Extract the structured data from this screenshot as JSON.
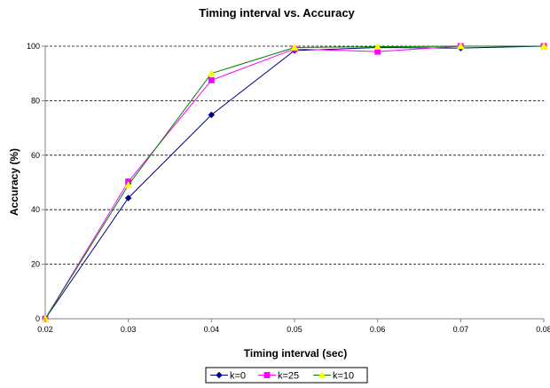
{
  "chart_data": {
    "type": "line",
    "title": "Timing interval vs. Accuracy",
    "xlabel": "Timing interval (sec)",
    "ylabel": "Accuracy (%)",
    "x": [
      0.02,
      0.03,
      0.04,
      0.05,
      0.06,
      0.07,
      0.08
    ],
    "x_tick_labels": [
      "0.02",
      "0.03",
      "0.04",
      "0.05",
      "0.06",
      "0.07",
      "0.08"
    ],
    "y_ticks": [
      0,
      20,
      40,
      60,
      80,
      100
    ],
    "y_tick_labels": [
      "0",
      "20",
      "40",
      "60",
      "80",
      "100"
    ],
    "xlim": [
      0.02,
      0.08
    ],
    "ylim": [
      0,
      100
    ],
    "grid": "horizontal dashed",
    "legend_position": "bottom",
    "series": [
      {
        "name": "k=0",
        "color": "#000080",
        "marker": "diamond",
        "values": [
          0,
          44.3,
          74.8,
          98.4,
          99.5,
          99.3,
          100
        ]
      },
      {
        "name": "k=25",
        "color": "#ff00ff",
        "marker": "square",
        "values": [
          0,
          50.3,
          87.5,
          99.0,
          98.0,
          100,
          100
        ]
      },
      {
        "name": "k=10",
        "color": "#ffff00",
        "line_color": "#008000",
        "marker": "triangle",
        "values": [
          0,
          49.0,
          90.0,
          99.5,
          99.8,
          100,
          100
        ]
      }
    ]
  }
}
